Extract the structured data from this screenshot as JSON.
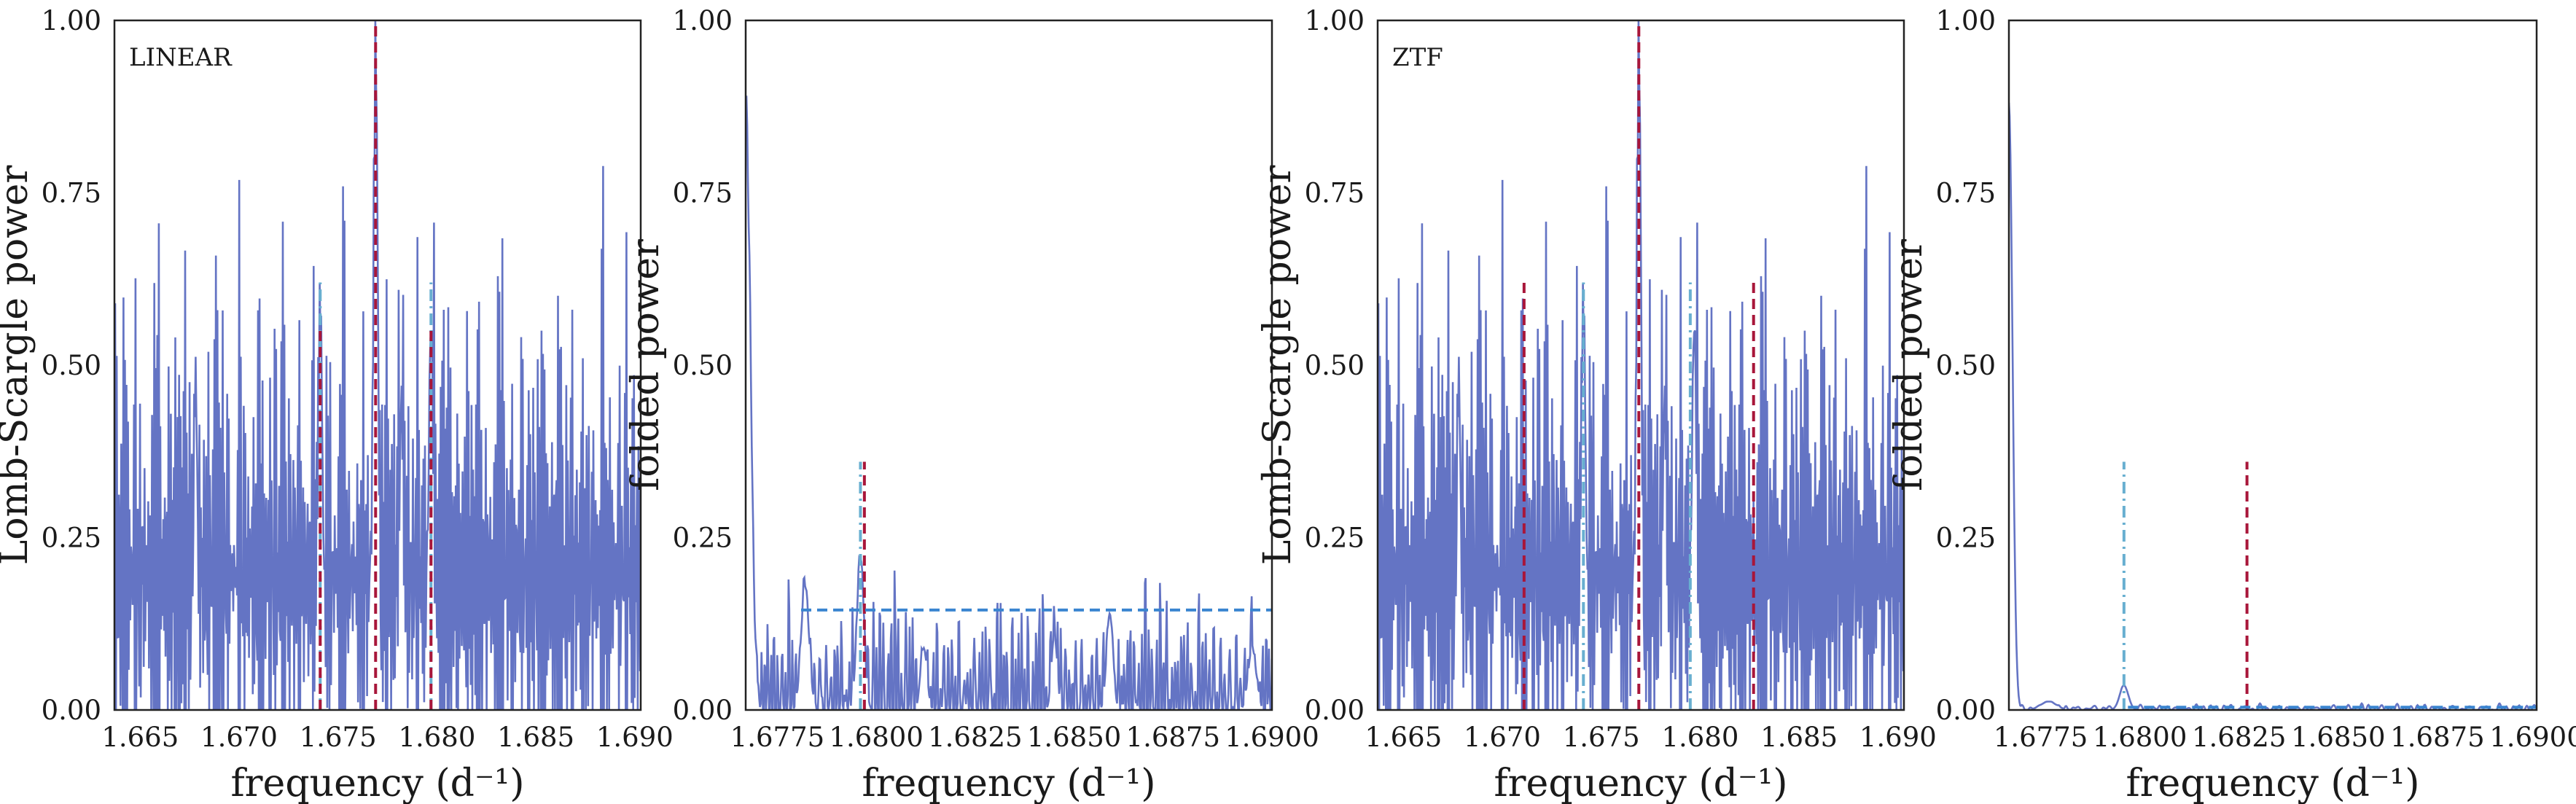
{
  "colors": {
    "periodogram": "#6474c4",
    "true_peak": "#a8163a",
    "alias": "#68afd0",
    "threshold": "#3a85d0",
    "frame": "#222222"
  },
  "chart_data": [
    {
      "type": "line",
      "panel": "LINEAR periodogram",
      "label": "LINEAR",
      "xlabel": "frequency (d⁻¹)",
      "ylabel": "Lomb-Scargle power",
      "xlim": [
        1.6637,
        1.6903
      ],
      "ylim": [
        0,
        1
      ],
      "xticks": [
        1.665,
        1.67,
        1.675,
        1.68,
        1.685,
        1.69
      ],
      "xtick_labels": [
        "1.665",
        "1.670",
        "1.675",
        "1.680",
        "1.685",
        "1.690"
      ],
      "yticks": [
        0,
        0.25,
        0.5,
        0.75,
        1.0
      ],
      "ytick_labels": [
        "0.00",
        "0.25",
        "0.50",
        "0.75",
        "1.00"
      ],
      "signal": {
        "kind": "noisy",
        "seed": 11,
        "base": 0.2,
        "amp": 0.17,
        "cycles": 330
      },
      "peaks": [
        {
          "x": 1.6769,
          "y": 0.93,
          "w": 0.00012
        },
        {
          "x": 1.6741,
          "y": 0.55,
          "w": 0.00012
        },
        {
          "x": 1.6797,
          "y": 0.53,
          "w": 0.00012
        },
        {
          "x": 1.6678,
          "y": 0.45,
          "w": 0.0001
        },
        {
          "x": 1.6782,
          "y": 0.42,
          "w": 0.0001
        }
      ],
      "vlines": [
        {
          "x": 1.6769,
          "y0": 0,
          "y1": 1.0,
          "style": "dashed",
          "color": "true_peak"
        },
        {
          "x": 1.6741,
          "y0": 0,
          "y1": 0.62,
          "style": "dashdot",
          "color": "alias"
        },
        {
          "x": 1.6797,
          "y0": 0,
          "y1": 0.62,
          "style": "dashdot",
          "color": "alias"
        },
        {
          "x": 1.6741,
          "y0": 0,
          "y1": 0.55,
          "style": "dashed",
          "color": "true_peak"
        },
        {
          "x": 1.6797,
          "y0": 0,
          "y1": 0.55,
          "style": "dashed",
          "color": "true_peak"
        }
      ],
      "hlines": []
    },
    {
      "type": "line",
      "panel": "LINEAR folded",
      "label": "",
      "xlabel": "frequency (d⁻¹)",
      "ylabel": "folded power",
      "xlim": [
        1.6767,
        1.69
      ],
      "ylim": [
        0,
        1
      ],
      "xticks": [
        1.6775,
        1.68,
        1.6825,
        1.685,
        1.6875,
        1.69
      ],
      "xtick_labels": [
        "1.6775",
        "1.6800",
        "1.6825",
        "1.6850",
        "1.6875",
        "1.6900"
      ],
      "yticks": [
        0,
        0.25,
        0.5,
        0.75,
        1.0
      ],
      "ytick_labels": [
        "0.00",
        "0.25",
        "0.50",
        "0.75",
        "1.00"
      ],
      "signal": {
        "kind": "noisy",
        "seed": 23,
        "base": 0.02,
        "amp": 0.06,
        "cycles": 120
      },
      "peaks": [
        {
          "x": 1.6767,
          "y": 0.88,
          "w": 0.00012
        },
        {
          "x": 1.6782,
          "y": 0.18,
          "w": 0.0001
        },
        {
          "x": 1.6796,
          "y": 0.22,
          "w": 9e-05
        },
        {
          "x": 1.6812,
          "y": 0.09,
          "w": 8e-05
        },
        {
          "x": 1.6859,
          "y": 0.14,
          "w": 8e-05
        },
        {
          "x": 1.6845,
          "y": 0.11,
          "w": 7e-05
        },
        {
          "x": 1.6895,
          "y": 0.09,
          "w": 0.0001
        }
      ],
      "vlines": [
        {
          "x": 1.6796,
          "y0": 0,
          "y1": 0.36,
          "style": "dashdot",
          "color": "alias"
        },
        {
          "x": 1.6797,
          "y0": 0,
          "y1": 0.36,
          "style": "dashed",
          "color": "true_peak"
        }
      ],
      "hlines": [
        {
          "y": 0.145,
          "x0": 1.6781,
          "x1": 1.69,
          "style": "dashed",
          "color": "threshold"
        }
      ]
    },
    {
      "type": "line",
      "panel": "ZTF periodogram",
      "label": "ZTF",
      "xlabel": "frequency (d⁻¹)",
      "ylabel": "Lomb-Scargle power",
      "xlim": [
        1.6637,
        1.6903
      ],
      "ylim": [
        0,
        1
      ],
      "xticks": [
        1.665,
        1.67,
        1.675,
        1.68,
        1.685,
        1.69
      ],
      "xtick_labels": [
        "1.665",
        "1.670",
        "1.675",
        "1.680",
        "1.685",
        "1.690"
      ],
      "yticks": [
        0,
        0.25,
        0.5,
        0.75,
        1.0
      ],
      "ytick_labels": [
        "0.00",
        "0.25",
        "0.50",
        "0.75",
        "1.00"
      ],
      "signal": {
        "kind": "noisy",
        "seed": 11,
        "base": 0.2,
        "amp": 0.17,
        "cycles": 330
      },
      "peaks": [
        {
          "x": 1.6769,
          "y": 0.93,
          "w": 0.00012
        },
        {
          "x": 1.6741,
          "y": 0.55,
          "w": 0.00012
        },
        {
          "x": 1.6797,
          "y": 0.53,
          "w": 0.00012
        },
        {
          "x": 1.6678,
          "y": 0.45,
          "w": 0.0001
        },
        {
          "x": 1.6782,
          "y": 0.42,
          "w": 0.0001
        }
      ],
      "vlines": [
        {
          "x": 1.6769,
          "y0": 0,
          "y1": 1.0,
          "style": "dashed",
          "color": "true_peak"
        },
        {
          "x": 1.6711,
          "y0": 0,
          "y1": 0.62,
          "style": "dashed",
          "color": "true_peak"
        },
        {
          "x": 1.6827,
          "y0": 0,
          "y1": 0.62,
          "style": "dashed",
          "color": "true_peak"
        },
        {
          "x": 1.6741,
          "y0": 0,
          "y1": 0.62,
          "style": "dashdot",
          "color": "alias"
        },
        {
          "x": 1.6795,
          "y0": 0,
          "y1": 0.62,
          "style": "dashdot",
          "color": "alias"
        }
      ],
      "hlines": []
    },
    {
      "type": "line",
      "panel": "ZTF folded",
      "label": "",
      "xlabel": "frequency (d⁻¹)",
      "ylabel": "folded power",
      "xlim": [
        1.6767,
        1.69
      ],
      "ylim": [
        0,
        1
      ],
      "xticks": [
        1.6775,
        1.68,
        1.6825,
        1.685,
        1.6875,
        1.69
      ],
      "xtick_labels": [
        "1.6775",
        "1.6800",
        "1.6825",
        "1.6850",
        "1.6875",
        "1.6900"
      ],
      "yticks": [
        0,
        0.25,
        0.5,
        0.75,
        1.0
      ],
      "ytick_labels": [
        "0.00",
        "0.25",
        "0.50",
        "0.75",
        "1.00"
      ],
      "signal": {
        "kind": "flat",
        "seed": 5,
        "base": 0.002,
        "amp": 0.002,
        "cycles": 60
      },
      "peaks": [
        {
          "x": 1.6767,
          "y": 0.88,
          "w": 9e-05
        },
        {
          "x": 1.6777,
          "y": 0.012,
          "w": 0.0002
        },
        {
          "x": 1.6796,
          "y": 0.035,
          "w": 0.00011
        }
      ],
      "vlines": [
        {
          "x": 1.6796,
          "y0": 0,
          "y1": 0.36,
          "style": "dashdot",
          "color": "alias"
        },
        {
          "x": 1.6827,
          "y0": 0,
          "y1": 0.36,
          "style": "dashed",
          "color": "true_peak"
        }
      ],
      "hlines": [
        {
          "y": 0.004,
          "x0": 1.6797,
          "x1": 1.69,
          "style": "dashed",
          "color": "threshold"
        }
      ]
    }
  ]
}
